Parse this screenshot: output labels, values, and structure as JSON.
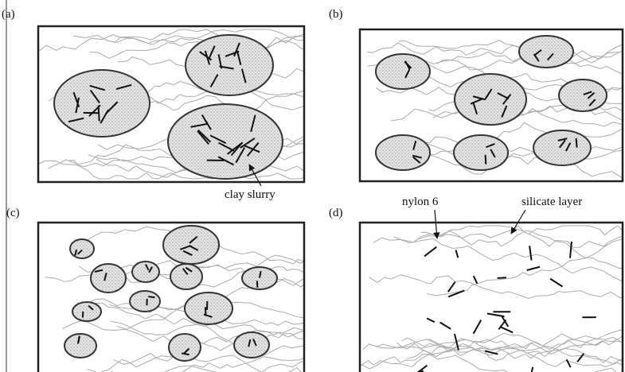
{
  "panels": [
    {
      "label": "(a)"
    },
    {
      "label": "(b)"
    },
    {
      "label": "(c)"
    },
    {
      "label": "(d)"
    }
  ],
  "annotations": {
    "clay_slurry": "clay slurry",
    "nylon": "nylon 6",
    "silicate": "silicate layer"
  }
}
